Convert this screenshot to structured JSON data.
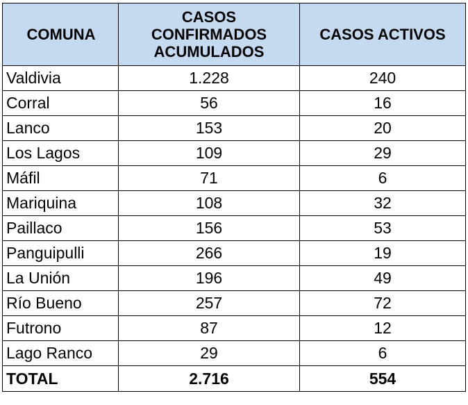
{
  "table": {
    "headers": {
      "comuna": "COMUNA",
      "confirmados_line1": "CASOS",
      "confirmados_line2": "CONFIRMADOS",
      "confirmados_line3": "ACUMULADOS",
      "activos": "CASOS ACTIVOS"
    },
    "rows": [
      {
        "comuna": "Valdivia",
        "confirmados": "1.228",
        "activos": "240"
      },
      {
        "comuna": "Corral",
        "confirmados": "56",
        "activos": "16"
      },
      {
        "comuna": "Lanco",
        "confirmados": "153",
        "activos": "20"
      },
      {
        "comuna": "Los Lagos",
        "confirmados": "109",
        "activos": "29"
      },
      {
        "comuna": "Máfil",
        "confirmados": "71",
        "activos": "6"
      },
      {
        "comuna": "Mariquina",
        "confirmados": "108",
        "activos": "32"
      },
      {
        "comuna": "Paillaco",
        "confirmados": "156",
        "activos": "53"
      },
      {
        "comuna": "Panguipulli",
        "confirmados": "266",
        "activos": "19"
      },
      {
        "comuna": "La Unión",
        "confirmados": "196",
        "activos": "49"
      },
      {
        "comuna": "Río Bueno",
        "confirmados": "257",
        "activos": "72"
      },
      {
        "comuna": "Futrono",
        "confirmados": "87",
        "activos": "12"
      },
      {
        "comuna": "Lago Ranco",
        "confirmados": "29",
        "activos": "6"
      }
    ],
    "total": {
      "label": "TOTAL",
      "confirmados": "2.716",
      "activos": "554"
    },
    "colors": {
      "header_bg": "#c5d9f1",
      "border": "#000000"
    }
  }
}
